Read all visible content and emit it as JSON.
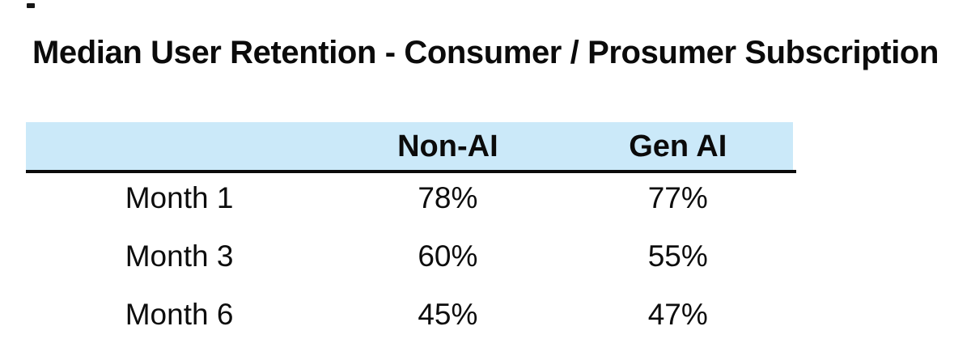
{
  "title": "Median User Retention - Consumer / Prosumer Subscription",
  "table": {
    "columns": [
      "",
      "Non-AI",
      "Gen AI"
    ],
    "rows": [
      {
        "label": "Month 1",
        "non_ai": "78%",
        "gen_ai": "77%"
      },
      {
        "label": "Month 3",
        "non_ai": "60%",
        "gen_ai": "55%"
      },
      {
        "label": "Month 6",
        "non_ai": "45%",
        "gen_ai": "47%"
      }
    ]
  },
  "colors": {
    "header_band_bg": "#cbe9f9",
    "rule": "#0b0b0b",
    "text": "#0d0d0d",
    "background": "#ffffff"
  },
  "chart_data": {
    "type": "table",
    "title": "Median User Retention - Consumer / Prosumer Subscription",
    "categories": [
      "Month 1",
      "Month 3",
      "Month 6"
    ],
    "series": [
      {
        "name": "Non-AI",
        "values": [
          78,
          60,
          45
        ]
      },
      {
        "name": "Gen AI",
        "values": [
          77,
          55,
          47
        ]
      }
    ],
    "unit": "%",
    "legend_position": "none",
    "grid": false
  }
}
